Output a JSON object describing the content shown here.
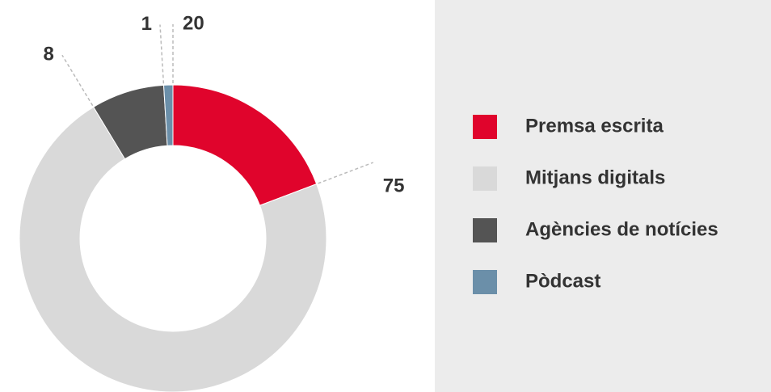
{
  "chart_data": {
    "type": "donut",
    "categories": [
      "Premsa escrita",
      "Mitjans digitals",
      "Agències de notícies",
      "Pòdcast"
    ],
    "values": [
      20,
      75,
      8,
      1
    ],
    "colors": [
      "#e0042c",
      "#d9d9d9",
      "#545454",
      "#6b8fa9"
    ],
    "legend": "right"
  }
}
